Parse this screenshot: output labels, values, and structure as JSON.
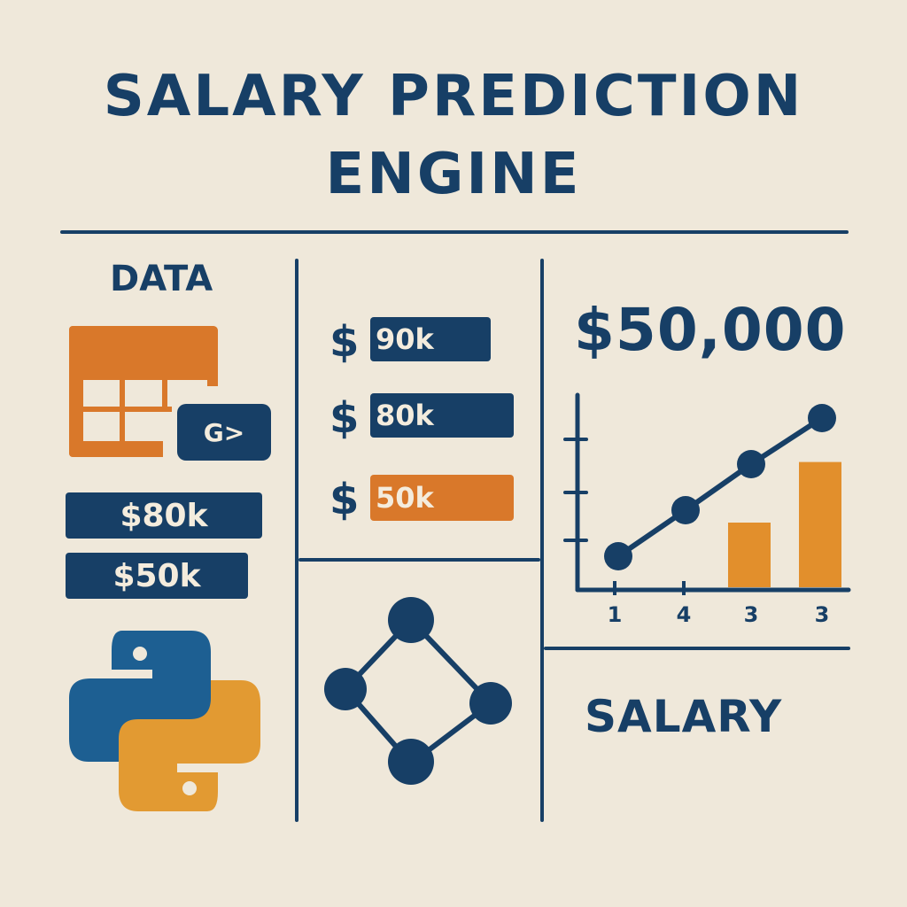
{
  "title": {
    "line1": "SALARY PREDICTION",
    "line2": "ENGINE"
  },
  "data_panel": {
    "heading": "DATA",
    "table_icon": "spreadsheet-icon",
    "chip_label": "G>",
    "pills": [
      "$80k",
      "$50k"
    ],
    "logo": "python-logo"
  },
  "salary_list": {
    "items": [
      {
        "symbol": "$",
        "value": "90k",
        "color": "#173f66"
      },
      {
        "symbol": "$",
        "value": "80k",
        "color": "#173f66"
      },
      {
        "symbol": "$",
        "value": "50k",
        "color": "#d9782a"
      }
    ]
  },
  "network_icon": "network-graph-icon",
  "prediction": {
    "value": "$50,000"
  },
  "chart_data": {
    "type": "line",
    "x_tick_labels": [
      "1",
      "4",
      "3",
      "3"
    ],
    "line_points": [
      1,
      2,
      3,
      4
    ],
    "bars": [
      0.5,
      0.95
    ],
    "colors": {
      "line": "#173f66",
      "bars": "#e28f2c"
    }
  },
  "bottom_label": "SALARY",
  "colors": {
    "navy": "#173f66",
    "orange": "#d9782a",
    "light_orange": "#e28f2c",
    "background": "#efe8da"
  }
}
